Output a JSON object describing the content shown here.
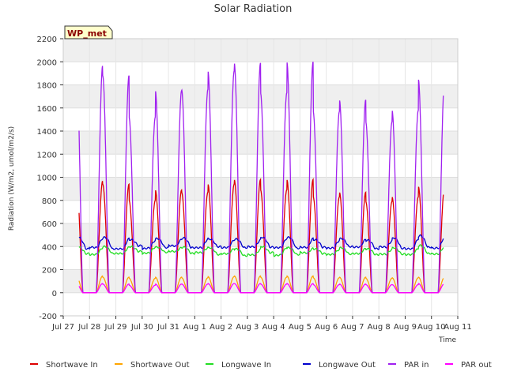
{
  "chart_data": {
    "type": "line",
    "title": "Solar Radiation",
    "xlabel": "Time",
    "ylabel": "Radiation (W/m2, umol/m2/s)",
    "ylim": [
      -200,
      2200
    ],
    "xlim": [
      0,
      15
    ],
    "yticks": [
      -200,
      0,
      200,
      400,
      600,
      800,
      1000,
      1200,
      1400,
      1600,
      1800,
      2000,
      2200
    ],
    "xtick_labels": [
      "Jul 27",
      "Jul 28",
      "Jul 29",
      "Jul 30",
      "Jul 31",
      "Aug 1",
      "Aug 2",
      "Aug 3",
      "Aug 4",
      "Aug 5",
      "Aug 6",
      "Aug 7",
      "Aug 8",
      "Aug 9",
      "Aug 10",
      "Aug 11"
    ],
    "grid": true,
    "legend_position": "bottom",
    "station_label": "WP_met",
    "series": [
      {
        "name": "Shortwave In",
        "color": "#dd0000",
        "daily_peaks": [
          970,
          940,
          800,
          890,
          870,
          940,
          980,
          890,
          980,
          830,
          870,
          790,
          830,
          920
        ]
      },
      {
        "name": "Shortwave Out",
        "color": "#ffa500",
        "daily_peaks": [
          145,
          135,
          125,
          135,
          130,
          140,
          145,
          135,
          145,
          130,
          135,
          125,
          130,
          135
        ]
      },
      {
        "name": "Longwave In",
        "color": "#22dd22",
        "night": [
          330,
          340,
          340,
          360,
          350,
          340,
          330,
          320,
          350,
          330,
          340,
          335,
          330,
          335,
          340
        ],
        "day": [
          395,
          400,
          400,
          395,
          395,
          390,
          380,
          400,
          390,
          380,
          390,
          380,
          390,
          410
        ]
      },
      {
        "name": "Longwave Out",
        "color": "#0000cc",
        "night": [
          395,
          380,
          380,
          410,
          390,
          390,
          400,
          390,
          395,
          385,
          395,
          400,
          380,
          385,
          395
        ],
        "day": [
          480,
          480,
          460,
          470,
          475,
          465,
          465,
          480,
          480,
          460,
          470,
          455,
          475,
          495
        ]
      },
      {
        "name": "PAR in",
        "color": "#a020f0",
        "daily_peaks": [
          1970,
          1880,
          1520,
          1750,
          1760,
          1920,
          1990,
          1730,
          2000,
          1570,
          1670,
          1480,
          1580,
          1850
        ]
      },
      {
        "name": "PAR out",
        "color": "#ff00ff",
        "daily_peaks": [
          80,
          75,
          65,
          75,
          75,
          80,
          80,
          75,
          80,
          70,
          75,
          70,
          70,
          80
        ]
      }
    ]
  }
}
